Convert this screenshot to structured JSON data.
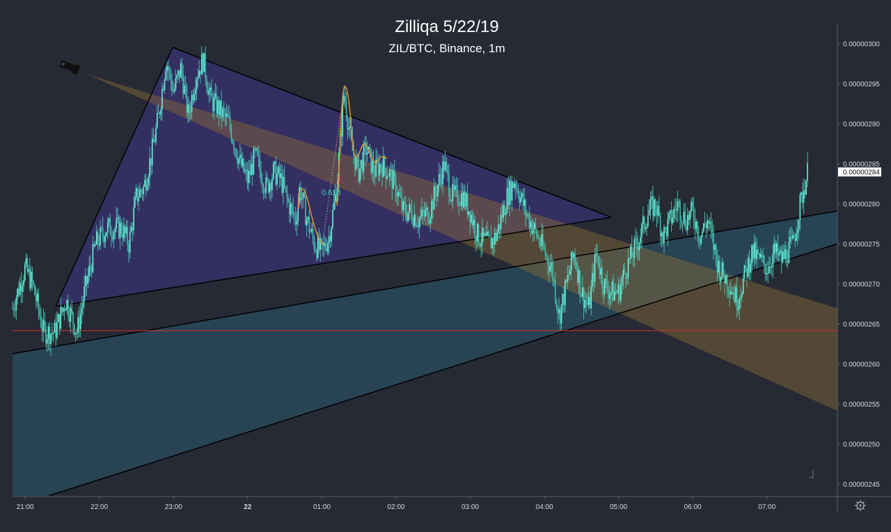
{
  "chart_data": {
    "type": "candlestick",
    "title": "Zilliqa 5/22/19",
    "subtitle": "ZIL/BTC, Binance, 1m",
    "y_range": [
      2.435e-06,
      3.025e-06
    ],
    "y_ticks": [
      "0.00000300",
      "0.00000295",
      "0.00000290",
      "0.00000285",
      "0.00000280",
      "0.00000275",
      "0.00000270",
      "0.00000265",
      "0.00000260",
      "0.00000255",
      "0.00000250",
      "0.00000245"
    ],
    "y_tick_values": [
      3e-06,
      2.95e-06,
      2.9e-06,
      2.85e-06,
      2.8e-06,
      2.75e-06,
      2.7e-06,
      2.65e-06,
      2.6e-06,
      2.55e-06,
      2.5e-06,
      2.45e-06
    ],
    "x_range": [
      20.83,
      31.95
    ],
    "x_ticks": [
      "21:00",
      "22:00",
      "23:00",
      "22",
      "01:00",
      "02:00",
      "03:00",
      "04:00",
      "05:00",
      "06:00",
      "07:00"
    ],
    "x_tick_values": [
      21,
      22,
      23,
      24,
      25,
      26,
      27,
      28,
      29,
      30,
      31
    ],
    "current_price_label": "0.00000284",
    "current_price": 2.84e-06,
    "support_level": 2.642e-06,
    "fib_label": "0.618",
    "price_path": [
      [
        20.83,
        2.67
      ],
      [
        21.0,
        2.72
      ],
      [
        21.1,
        2.7
      ],
      [
        21.25,
        2.64
      ],
      [
        21.4,
        2.64
      ],
      [
        21.55,
        2.68
      ],
      [
        21.7,
        2.64
      ],
      [
        21.8,
        2.69
      ],
      [
        21.95,
        2.75
      ],
      [
        22.1,
        2.77
      ],
      [
        22.3,
        2.77
      ],
      [
        22.4,
        2.75
      ],
      [
        22.5,
        2.81
      ],
      [
        22.6,
        2.82
      ],
      [
        22.7,
        2.86
      ],
      [
        22.8,
        2.91
      ],
      [
        22.9,
        2.98
      ],
      [
        23.0,
        2.94
      ],
      [
        23.1,
        2.97
      ],
      [
        23.2,
        2.91
      ],
      [
        23.3,
        2.96
      ],
      [
        23.4,
        2.98
      ],
      [
        23.5,
        2.93
      ],
      [
        23.6,
        2.92
      ],
      [
        23.75,
        2.9
      ],
      [
        23.9,
        2.85
      ],
      [
        24.0,
        2.83
      ],
      [
        24.1,
        2.86
      ],
      [
        24.25,
        2.82
      ],
      [
        24.35,
        2.84
      ],
      [
        24.45,
        2.83
      ],
      [
        24.55,
        2.8
      ],
      [
        24.65,
        2.78
      ],
      [
        24.7,
        2.82
      ],
      [
        24.8,
        2.78
      ],
      [
        24.9,
        2.75
      ],
      [
        25.0,
        2.74
      ],
      [
        25.1,
        2.76
      ],
      [
        25.2,
        2.82
      ],
      [
        25.3,
        2.94
      ],
      [
        25.4,
        2.87
      ],
      [
        25.5,
        2.84
      ],
      [
        25.6,
        2.87
      ],
      [
        25.7,
        2.84
      ],
      [
        25.8,
        2.85
      ],
      [
        25.9,
        2.84
      ],
      [
        26.0,
        2.82
      ],
      [
        26.1,
        2.79
      ],
      [
        26.2,
        2.79
      ],
      [
        26.3,
        2.78
      ],
      [
        26.45,
        2.79
      ],
      [
        26.55,
        2.82
      ],
      [
        26.65,
        2.85
      ],
      [
        26.75,
        2.81
      ],
      [
        26.9,
        2.81
      ],
      [
        27.0,
        2.79
      ],
      [
        27.1,
        2.76
      ],
      [
        27.25,
        2.75
      ],
      [
        27.35,
        2.76
      ],
      [
        27.5,
        2.81
      ],
      [
        27.6,
        2.83
      ],
      [
        27.75,
        2.79
      ],
      [
        27.85,
        2.77
      ],
      [
        28.0,
        2.74
      ],
      [
        28.1,
        2.72
      ],
      [
        28.2,
        2.66
      ],
      [
        28.3,
        2.7
      ],
      [
        28.4,
        2.74
      ],
      [
        28.5,
        2.69
      ],
      [
        28.6,
        2.67
      ],
      [
        28.7,
        2.74
      ],
      [
        28.8,
        2.7
      ],
      [
        28.9,
        2.69
      ],
      [
        29.0,
        2.69
      ],
      [
        29.1,
        2.72
      ],
      [
        29.25,
        2.75
      ],
      [
        29.4,
        2.79
      ],
      [
        29.5,
        2.8
      ],
      [
        29.6,
        2.76
      ],
      [
        29.7,
        2.78
      ],
      [
        29.8,
        2.8
      ],
      [
        29.9,
        2.78
      ],
      [
        30.0,
        2.79
      ],
      [
        30.1,
        2.76
      ],
      [
        30.2,
        2.78
      ],
      [
        30.35,
        2.72
      ],
      [
        30.5,
        2.7
      ],
      [
        30.6,
        2.68
      ],
      [
        30.7,
        2.71
      ],
      [
        30.8,
        2.74
      ],
      [
        30.9,
        2.73
      ],
      [
        31.0,
        2.72
      ],
      [
        31.1,
        2.74
      ],
      [
        31.2,
        2.73
      ],
      [
        31.35,
        2.75
      ],
      [
        31.45,
        2.8
      ],
      [
        31.55,
        2.84
      ]
    ]
  }
}
